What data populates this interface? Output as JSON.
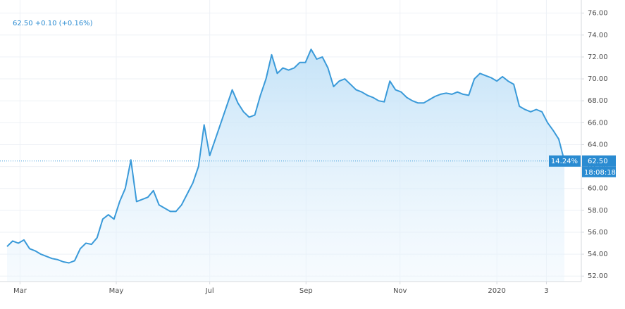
{
  "chart_data": {
    "type": "area",
    "legend_text": "62.50 +0.10 (+0.16%)",
    "values": [
      54.7,
      55.2,
      55.0,
      55.3,
      54.5,
      54.3,
      54.0,
      53.8,
      53.6,
      53.5,
      53.3,
      53.2,
      53.4,
      54.5,
      55.0,
      54.9,
      55.5,
      57.2,
      57.6,
      57.2,
      58.8,
      60.0,
      62.6,
      58.8,
      59.0,
      59.2,
      59.8,
      58.5,
      58.2,
      57.9,
      57.9,
      58.5,
      59.5,
      60.5,
      62.0,
      65.8,
      63.0,
      64.5,
      66.0,
      67.5,
      69.0,
      67.8,
      67.0,
      66.5,
      66.7,
      68.5,
      70.0,
      72.2,
      70.5,
      71.0,
      70.8,
      71.0,
      71.5,
      71.5,
      72.7,
      71.8,
      72.0,
      71.0,
      69.3,
      69.8,
      70.0,
      69.5,
      69.0,
      68.8,
      68.5,
      68.3,
      68.0,
      67.9,
      69.8,
      69.0,
      68.8,
      68.3,
      68.0,
      67.8,
      67.8,
      68.1,
      68.4,
      68.6,
      68.7,
      68.6,
      68.8,
      68.6,
      68.5,
      70.0,
      70.5,
      70.3,
      70.1,
      69.8,
      70.2,
      69.8,
      69.5,
      67.5,
      67.2,
      67.0,
      67.2,
      67.0,
      66.0,
      65.3,
      64.5,
      62.5
    ],
    "color": "#3a9ad9",
    "xlim": [
      0,
      102
    ],
    "xticks": [
      {
        "value": 2.3,
        "label": "Mar"
      },
      {
        "value": 19.4,
        "label": "May"
      },
      {
        "value": 36,
        "label": "Jul"
      },
      {
        "value": 53.1,
        "label": "Sep"
      },
      {
        "value": 69.8,
        "label": "Nov"
      },
      {
        "value": 87,
        "label": "2020"
      },
      {
        "value": 95.8,
        "label": "3"
      }
    ],
    "ylim": [
      51.5,
      77.2
    ],
    "yticks": [
      {
        "value": 52,
        "label": "52.00"
      },
      {
        "value": 54,
        "label": "54.00"
      },
      {
        "value": 56,
        "label": "56.00"
      },
      {
        "value": 58,
        "label": "58.00"
      },
      {
        "value": 60,
        "label": "60.00"
      },
      {
        "value": 62,
        "label": "62.00"
      },
      {
        "value": 64,
        "label": "64.00"
      },
      {
        "value": 66,
        "label": "66.00"
      },
      {
        "value": 68,
        "label": "68.00"
      },
      {
        "value": 70,
        "label": "70.00"
      },
      {
        "value": 72,
        "label": "72.00"
      },
      {
        "value": 74,
        "label": "74.00"
      },
      {
        "value": 76,
        "label": "76.00"
      }
    ],
    "price_line": {
      "value": 62.5,
      "label": "62.50"
    },
    "change_label": "14.24%",
    "time_label": "18:08:18",
    "grid": true
  }
}
